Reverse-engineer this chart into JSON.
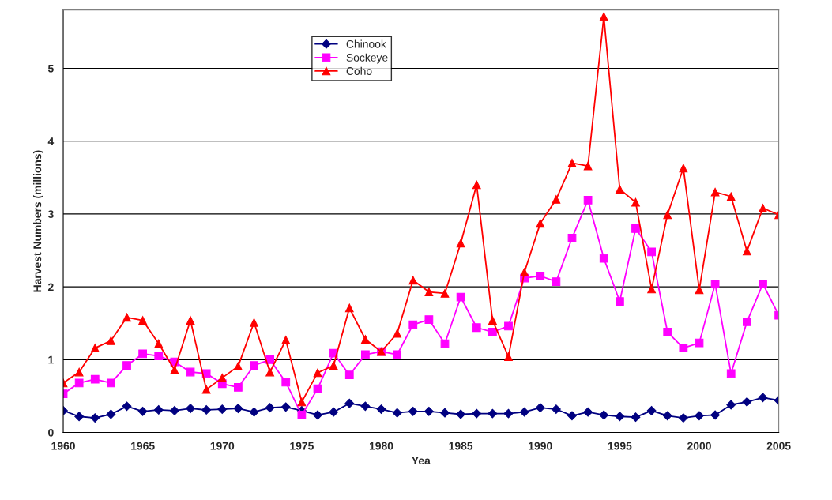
{
  "chart_data": {
    "type": "line",
    "xlabel": "Yea",
    "ylabel": "Harvest Numbers (millions)",
    "x": [
      1960,
      1961,
      1962,
      1963,
      1964,
      1965,
      1966,
      1967,
      1968,
      1969,
      1970,
      1971,
      1972,
      1973,
      1974,
      1975,
      1976,
      1977,
      1978,
      1979,
      1980,
      1981,
      1982,
      1983,
      1984,
      1985,
      1986,
      1987,
      1988,
      1989,
      1990,
      1991,
      1992,
      1993,
      1994,
      1995,
      1996,
      1997,
      1998,
      1999,
      2000,
      2001,
      2002,
      2003,
      2004,
      2005
    ],
    "series": [
      {
        "name": "Chinook",
        "color": "#000080",
        "marker": "diamond",
        "values": [
          0.3,
          0.22,
          0.2,
          0.25,
          0.36,
          0.29,
          0.31,
          0.3,
          0.33,
          0.31,
          0.32,
          0.33,
          0.28,
          0.34,
          0.35,
          0.3,
          0.24,
          0.28,
          0.4,
          0.36,
          0.32,
          0.27,
          0.29,
          0.29,
          0.27,
          0.25,
          0.26,
          0.26,
          0.26,
          0.28,
          0.34,
          0.32,
          0.23,
          0.28,
          0.24,
          0.22,
          0.21,
          0.3,
          0.23,
          0.2,
          0.23,
          0.24,
          0.38,
          0.42,
          0.48,
          0.44
        ]
      },
      {
        "name": "Sockeye",
        "color": "#ff00ff",
        "marker": "square",
        "values": [
          0.53,
          0.68,
          0.73,
          0.68,
          0.92,
          1.08,
          1.05,
          0.97,
          0.83,
          0.81,
          0.67,
          0.62,
          0.92,
          1.0,
          0.69,
          0.24,
          0.6,
          1.09,
          0.79,
          1.07,
          1.11,
          1.07,
          1.48,
          1.55,
          1.22,
          1.86,
          1.44,
          1.38,
          1.46,
          2.12,
          2.15,
          2.07,
          2.67,
          3.19,
          2.39,
          1.8,
          2.8,
          2.48,
          1.38,
          1.16,
          1.23,
          2.04,
          0.81,
          1.52,
          2.04,
          1.61
        ]
      },
      {
        "name": "Coho",
        "color": "#ff0000",
        "marker": "triangle",
        "values": [
          0.68,
          0.83,
          1.16,
          1.26,
          1.58,
          1.54,
          1.22,
          0.86,
          1.54,
          0.59,
          0.75,
          0.91,
          1.51,
          0.83,
          1.27,
          0.42,
          0.82,
          0.92,
          1.71,
          1.28,
          1.11,
          1.36,
          2.09,
          1.93,
          1.91,
          2.6,
          3.4,
          1.54,
          1.04,
          2.2,
          2.87,
          3.2,
          3.7,
          3.66,
          5.71,
          3.34,
          3.16,
          1.97,
          2.99,
          3.63,
          1.96,
          3.3,
          3.24,
          2.49,
          3.08,
          2.99
        ]
      }
    ],
    "xlim": [
      1960,
      2005
    ],
    "xticks": [
      1960,
      1965,
      1970,
      1975,
      1980,
      1985,
      1990,
      1995,
      2000,
      2005
    ],
    "ylim": [
      0,
      5.8
    ],
    "yticks": [
      0,
      1,
      2,
      3,
      4,
      5
    ],
    "grid": "y",
    "legend": "top left",
    "line_style": "solid"
  }
}
